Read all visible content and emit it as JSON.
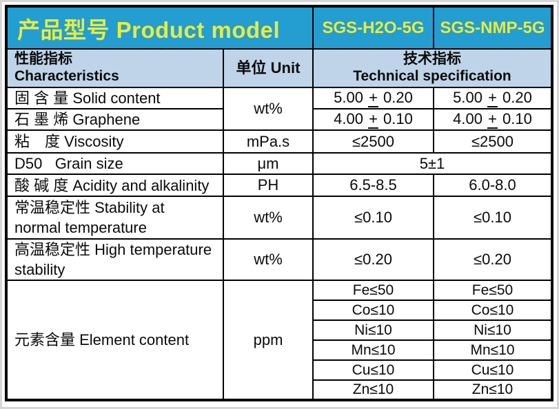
{
  "colors": {
    "header_bg": "#249dd0",
    "header_text": "#e9ec3a",
    "subheader_bg": "#bfd4e9",
    "border": "#000000",
    "body_text": "#0a0a0a",
    "frame": "#d6d6d6"
  },
  "header": {
    "product_model_label": "产品型号 Product model",
    "models": [
      "SGS-H2O-5G",
      "SGS-NMP-5G"
    ]
  },
  "subheader": {
    "characteristics_zh": "性能指标",
    "characteristics_en": "Characteristics",
    "unit_label": "单位 Unit",
    "spec_zh": "技术指标",
    "spec_en": "Technical specification"
  },
  "rows": {
    "solid_content": {
      "label": "固 含 量 Solid content",
      "unit": "wt%",
      "h2o": "5.00 ± 0.20",
      "nmp": "5.00 ± 0.20"
    },
    "graphene": {
      "label": "石 墨 烯 Graphene",
      "h2o": "4.00 ± 0.10",
      "nmp": "4.00 ± 0.10"
    },
    "viscosity": {
      "label": "粘　度 Viscosity",
      "unit": "mPa.s",
      "h2o": "≤2500",
      "nmp": "≤2500"
    },
    "grain_size": {
      "label": "D50   Grain size",
      "unit": "μm",
      "value": "5±1"
    },
    "acidity": {
      "label": "酸 碱 度 Acidity and alkalinity",
      "unit": "PH",
      "h2o": "6.5-8.5",
      "nmp": "6.0-8.0"
    },
    "stability_normal": {
      "label": "常温稳定性 Stability at\nnormal temperature",
      "unit": "wt%",
      "h2o": "≤0.10",
      "nmp": "≤0.10"
    },
    "stability_high": {
      "label": "高温稳定性 High temperature\nstability",
      "unit": "wt%",
      "h2o": "≤0.20",
      "nmp": "≤0.20"
    },
    "element_content": {
      "label": "元素含量 Element content",
      "unit": "ppm",
      "elements": [
        {
          "h2o": "Fe≤50",
          "nmp": "Fe≤50"
        },
        {
          "h2o": "Co≤10",
          "nmp": "Co≤10"
        },
        {
          "h2o": "Ni≤10",
          "nmp": "Ni≤10"
        },
        {
          "h2o": "Mn≤10",
          "nmp": "Mn≤10"
        },
        {
          "h2o": "Cu≤10",
          "nmp": "Cu≤10"
        },
        {
          "h2o": "Zn≤10",
          "nmp": "Zn≤10"
        }
      ]
    }
  }
}
